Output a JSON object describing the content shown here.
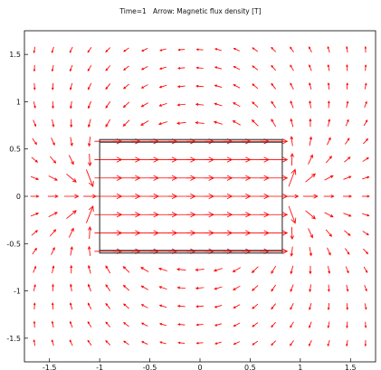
{
  "title": "Time=1   Arrow: Magnetic flux density [T]",
  "chart_data": {
    "type": "vector-field",
    "title": "Time=1   Arrow: Magnetic flux density [T]",
    "xlim": [
      -1.75,
      1.75
    ],
    "ylim": [
      -1.75,
      1.75
    ],
    "x_ticks": [
      -1.5,
      -1,
      -0.5,
      0,
      0.5,
      1,
      1.5
    ],
    "y_ticks": [
      1.5,
      1,
      0.5,
      0,
      -0.5,
      -1,
      -1.5
    ],
    "x_tick_labels": [
      "-1.5",
      "-1",
      "-0.5",
      "0",
      "0.5",
      "1",
      "1.5"
    ],
    "y_tick_labels": [
      "1.5",
      "1",
      "0.5",
      "0",
      "-0.5",
      "-1",
      "-1.5"
    ],
    "arrow_color": "#ff0000",
    "magnet": {
      "x_range": [
        -1,
        0.82
      ],
      "y_range": [
        -0.6,
        0.6
      ],
      "edge_color": "#333333"
    },
    "arrow_grid": {
      "x_range": [
        -1.65,
        1.65
      ],
      "y_range": [
        -1.55,
        1.55
      ],
      "columns": 19,
      "rows": 17
    },
    "dipole_centers": [
      {
        "x": -1.0,
        "y": 0
      },
      {
        "x": 0.82,
        "y": 0
      }
    ],
    "grid": false
  }
}
